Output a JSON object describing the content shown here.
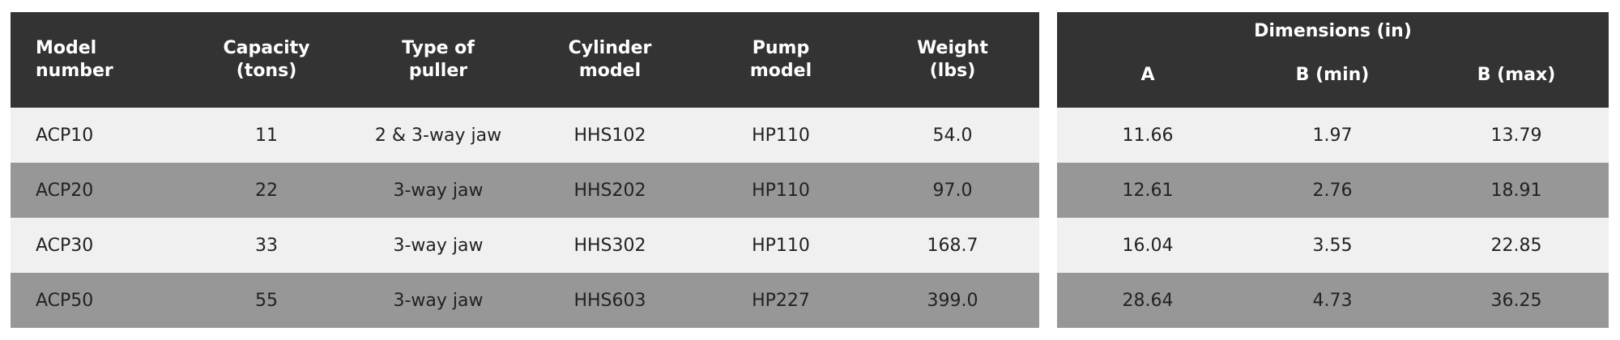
{
  "tables": [
    {
      "header": [
        "Model\nnumber",
        "Capacity\n(tons)",
        "Type of\npuller",
        "Cylinder\nmodel",
        "Pump\nmodel",
        "Weight\n(lbs)"
      ],
      "rows": [
        [
          "ACP10",
          "11",
          "2 & 3-way jaw",
          "HHS102",
          "HP110",
          "54.0"
        ],
        [
          "ACP20",
          "22",
          "3-way jaw",
          "HHS202",
          "HP110",
          "97.0"
        ],
        [
          "ACP30",
          "33",
          "3-way jaw",
          "HHS302",
          "HP110",
          "168.7"
        ],
        [
          "ACP50",
          "55",
          "3-way jaw",
          "HHS603",
          "HP227",
          "399.0"
        ]
      ]
    },
    {
      "group_title": "Dimensions (in)",
      "header": [
        "A",
        "B (min)",
        "B (max)"
      ],
      "rows": [
        [
          "11.66",
          "1.97",
          "13.79"
        ],
        [
          "12.61",
          "2.76",
          "18.91"
        ],
        [
          "16.04",
          "3.55",
          "22.85"
        ],
        [
          "28.64",
          "4.73",
          "36.25"
        ]
      ]
    }
  ]
}
